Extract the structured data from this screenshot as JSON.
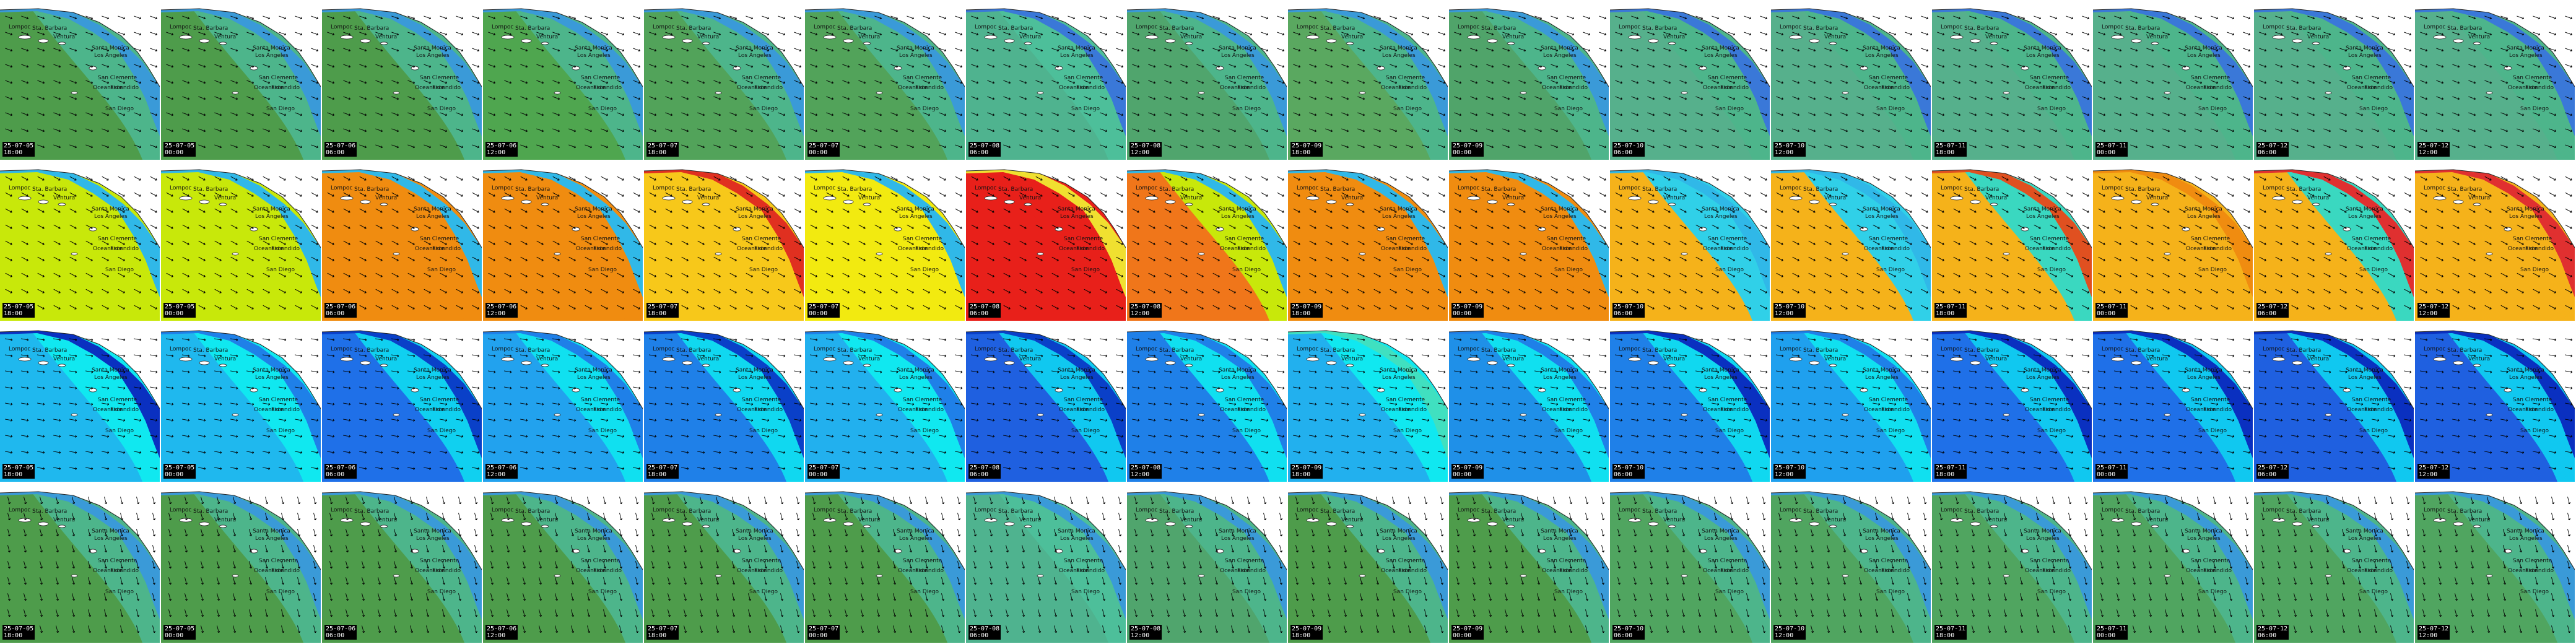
{
  "places": [
    "Lompoc",
    "Sta. Barbara",
    "Ventura",
    "Santa Monica",
    "Los Angeles",
    "San Clemente",
    "Oceanside",
    "Escondido",
    "San Diego"
  ],
  "timestamps": [
    {
      "date": "25-07-05",
      "time": "18:00"
    },
    {
      "date": "25-07-05",
      "time": "00:00"
    },
    {
      "date": "25-07-06",
      "time": "06:00"
    },
    {
      "date": "25-07-06",
      "time": "12:00"
    },
    {
      "date": "25-07-07",
      "time": "18:00"
    },
    {
      "date": "25-07-07",
      "time": "00:00"
    },
    {
      "date": "25-07-08",
      "time": "06:00"
    },
    {
      "date": "25-07-08",
      "time": "12:00"
    },
    {
      "date": "25-07-09",
      "time": "18:00"
    },
    {
      "date": "25-07-09",
      "time": "00:00"
    },
    {
      "date": "25-07-10",
      "time": "06:00"
    },
    {
      "date": "25-07-10",
      "time": "12:00"
    },
    {
      "date": "25-07-11",
      "time": "18:00"
    },
    {
      "date": "25-07-11",
      "time": "00:00"
    },
    {
      "date": "25-07-12",
      "time": "06:00"
    },
    {
      "date": "25-07-12",
      "time": "12:00"
    }
  ],
  "rows": [
    {
      "kind": "wave-height",
      "bg": [
        "#4e9c4b",
        "#4e9c4b",
        "#4e9c4b",
        "#4fa64f",
        "#52a35a",
        "#52a35a",
        "#4fb38f",
        "#50a56d",
        "#5aa860",
        "#50a46a",
        "#56b08c",
        "#56b08c",
        "#56b08c",
        "#56b08c",
        "#56b08c",
        "#56b08c"
      ],
      "band": [
        "#4db58b",
        "#4db58b",
        "#4db58b",
        "#4db58b",
        "#4db58b",
        "#4db58b",
        "#4dbf9a",
        "#4db58b",
        "#4db58b",
        "#4db58b",
        "#4db58b",
        "#4db58b",
        "#4db58b",
        "#4db58b",
        "#4db58b",
        "#4db58b"
      ],
      "coast": [
        "#3a9ad8",
        "#3a9ad8",
        "#3a9ad8",
        "#3a9ad8",
        "#3a9ad8",
        "#3a9ad8",
        "#3a78d8",
        "#3a9ad8",
        "#3a9ad8",
        "#3a9ad8",
        "#3a78d8",
        "#3a78d8",
        "#3a78d8",
        "#3a78d8",
        "#3a78d8",
        "#3a78d8"
      ]
    },
    {
      "kind": "wave-period",
      "bg": [
        "#c8e80a",
        "#c8e80a",
        "#f08c10",
        "#f08c10",
        "#f7c81a",
        "#f2ea10",
        "#e8201a",
        "#f0761a",
        "#f08c10",
        "#f08c10",
        "#f5b21a",
        "#f5b21a",
        "#f5b21a",
        "#f5b21a",
        "#f5b21a",
        "#f5b21a"
      ],
      "band": [
        "#c8e80a",
        "#c8e80a",
        "#f08c10",
        "#f08c10",
        "#f7c81a",
        "#f2ea10",
        "#e8201a",
        "#c8e80a",
        "#f08c10",
        "#f08c10",
        "#30d0e8",
        "#30d0e8",
        "#3ad8c0",
        "#f5b21a",
        "#3ad8c0",
        "#f5b21a"
      ],
      "coast": [
        "#30b8e8",
        "#30b8e8",
        "#30b8e8",
        "#30b8e8",
        "#e03020",
        "#30b8e8",
        "#f0e030",
        "#30b8e8",
        "#30b8e8",
        "#30b8e8",
        "#30b8e8",
        "#30b8e8",
        "#e05020",
        "#f08c10",
        "#e03030",
        "#e03030"
      ]
    },
    {
      "kind": "wind-speed",
      "bg": [
        "#1fb8ee",
        "#1fb8ee",
        "#1f70e8",
        "#22a2ee",
        "#1f80e8",
        "#22b0ee",
        "#1f60e0",
        "#1f80e8",
        "#22b0ee",
        "#1f90e8",
        "#1f80e8",
        "#1fa0ee",
        "#1f70e8",
        "#1f70e8",
        "#1f60e0",
        "#1f60e0"
      ],
      "band": [
        "#10e8f0",
        "#10e8f0",
        "#10d0f0",
        "#10e0f0",
        "#10d8f0",
        "#10e8f0",
        "#10c8f0",
        "#10e0f0",
        "#10e8f0",
        "#10e0f0",
        "#10d8f0",
        "#10e0f0",
        "#10c8f0",
        "#10c8f0",
        "#10c8f0",
        "#10c8f0"
      ],
      "coast": [
        "#0a30c0",
        "#1f80e8",
        "#0a40c8",
        "#1f80e8",
        "#0a40c8",
        "#1f80e8",
        "#0a40c8",
        "#1f80e8",
        "#40e0c0",
        "#1f80e8",
        "#0a30c0",
        "#1f80e8",
        "#0a30c0",
        "#0a30c0",
        "#0a30c0",
        "#0a30c0"
      ]
    },
    {
      "kind": "swell-height",
      "bg": [
        "#4e9c4b",
        "#4e9c4b",
        "#4e9c4b",
        "#4e9c4b",
        "#4e9c4b",
        "#4e9c4b",
        "#4fb38f",
        "#50a56d",
        "#4e9c4b",
        "#4e9c4b",
        "#50a560",
        "#50a560",
        "#50a560",
        "#50a560",
        "#50a560",
        "#50a560"
      ],
      "band": [
        "#4db58b",
        "#4db58b",
        "#4db58b",
        "#4db58b",
        "#4db58b",
        "#4db58b",
        "#4dbf9a",
        "#4db58b",
        "#4db58b",
        "#4db58b",
        "#4db58b",
        "#4db58b",
        "#4db58b",
        "#4db58b",
        "#4db58b",
        "#4db58b"
      ],
      "coast": [
        "#3a9ad8",
        "#3a9ad8",
        "#3a9ad8",
        "#3a9ad8",
        "#3a9ad8",
        "#3a9ad8",
        "#3a9ad8",
        "#3a9ad8",
        "#3a9ad8",
        "#3a9ad8",
        "#3a9ad8",
        "#3a9ad8",
        "#3a9ad8",
        "#3a9ad8",
        "#3a9ad8",
        "#3a9ad8"
      ]
    }
  ],
  "arrow_color": "#000000",
  "land_color": "#ffffff"
}
